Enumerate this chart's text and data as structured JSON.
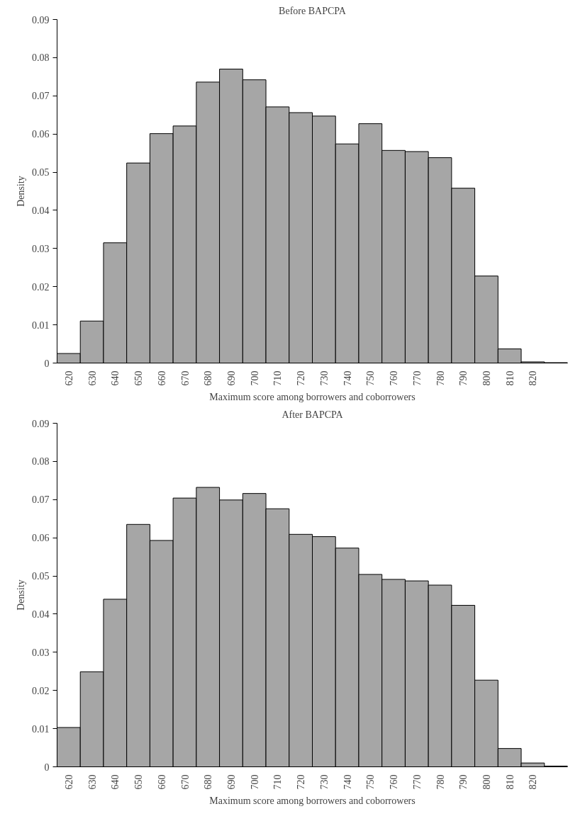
{
  "chart_data": [
    {
      "type": "bar",
      "title": "Before BAPCPA",
      "xlabel": "Maximum score among borrowers and coborrowers",
      "ylabel": "Density",
      "color": "#a6a6a6",
      "categories": [
        "620",
        "630",
        "640",
        "650",
        "660",
        "670",
        "680",
        "690",
        "700",
        "710",
        "720",
        "730",
        "740",
        "750",
        "760",
        "770",
        "780",
        "790",
        "800",
        "810",
        "820",
        null
      ],
      "values": [
        0.0025,
        0.011,
        0.0315,
        0.0524,
        0.0601,
        0.0621,
        0.0736,
        0.077,
        0.0742,
        0.0671,
        0.0656,
        0.0647,
        0.0574,
        0.0627,
        0.0557,
        0.0554,
        0.0538,
        0.0458,
        0.0228,
        0.0037,
        0.0003,
        0.0001
      ],
      "ylim": [
        0,
        0.09
      ],
      "yticks": [
        0,
        0.01,
        0.02,
        0.03,
        0.04,
        0.05,
        0.06,
        0.07,
        0.08,
        0.09
      ],
      "grid": false
    },
    {
      "type": "bar",
      "title": "After BAPCPA",
      "xlabel": "Maximum score among borrowers and coborrowers",
      "ylabel": "Density",
      "color": "#a6a6a6",
      "categories": [
        "620",
        "630",
        "640",
        "650",
        "660",
        "670",
        "680",
        "690",
        "700",
        "710",
        "720",
        "730",
        "740",
        "750",
        "760",
        "770",
        "780",
        "790",
        "800",
        "810",
        "820",
        null
      ],
      "values": [
        0.0103,
        0.0249,
        0.0439,
        0.0635,
        0.0593,
        0.0704,
        0.0732,
        0.0699,
        0.0716,
        0.0676,
        0.0609,
        0.0603,
        0.0573,
        0.0504,
        0.0491,
        0.0487,
        0.0476,
        0.0423,
        0.0227,
        0.0048,
        0.001,
        0.0002
      ],
      "ylim": [
        0,
        0.09
      ],
      "yticks": [
        0,
        0.01,
        0.02,
        0.03,
        0.04,
        0.05,
        0.06,
        0.07,
        0.08,
        0.09
      ],
      "grid": false
    }
  ]
}
